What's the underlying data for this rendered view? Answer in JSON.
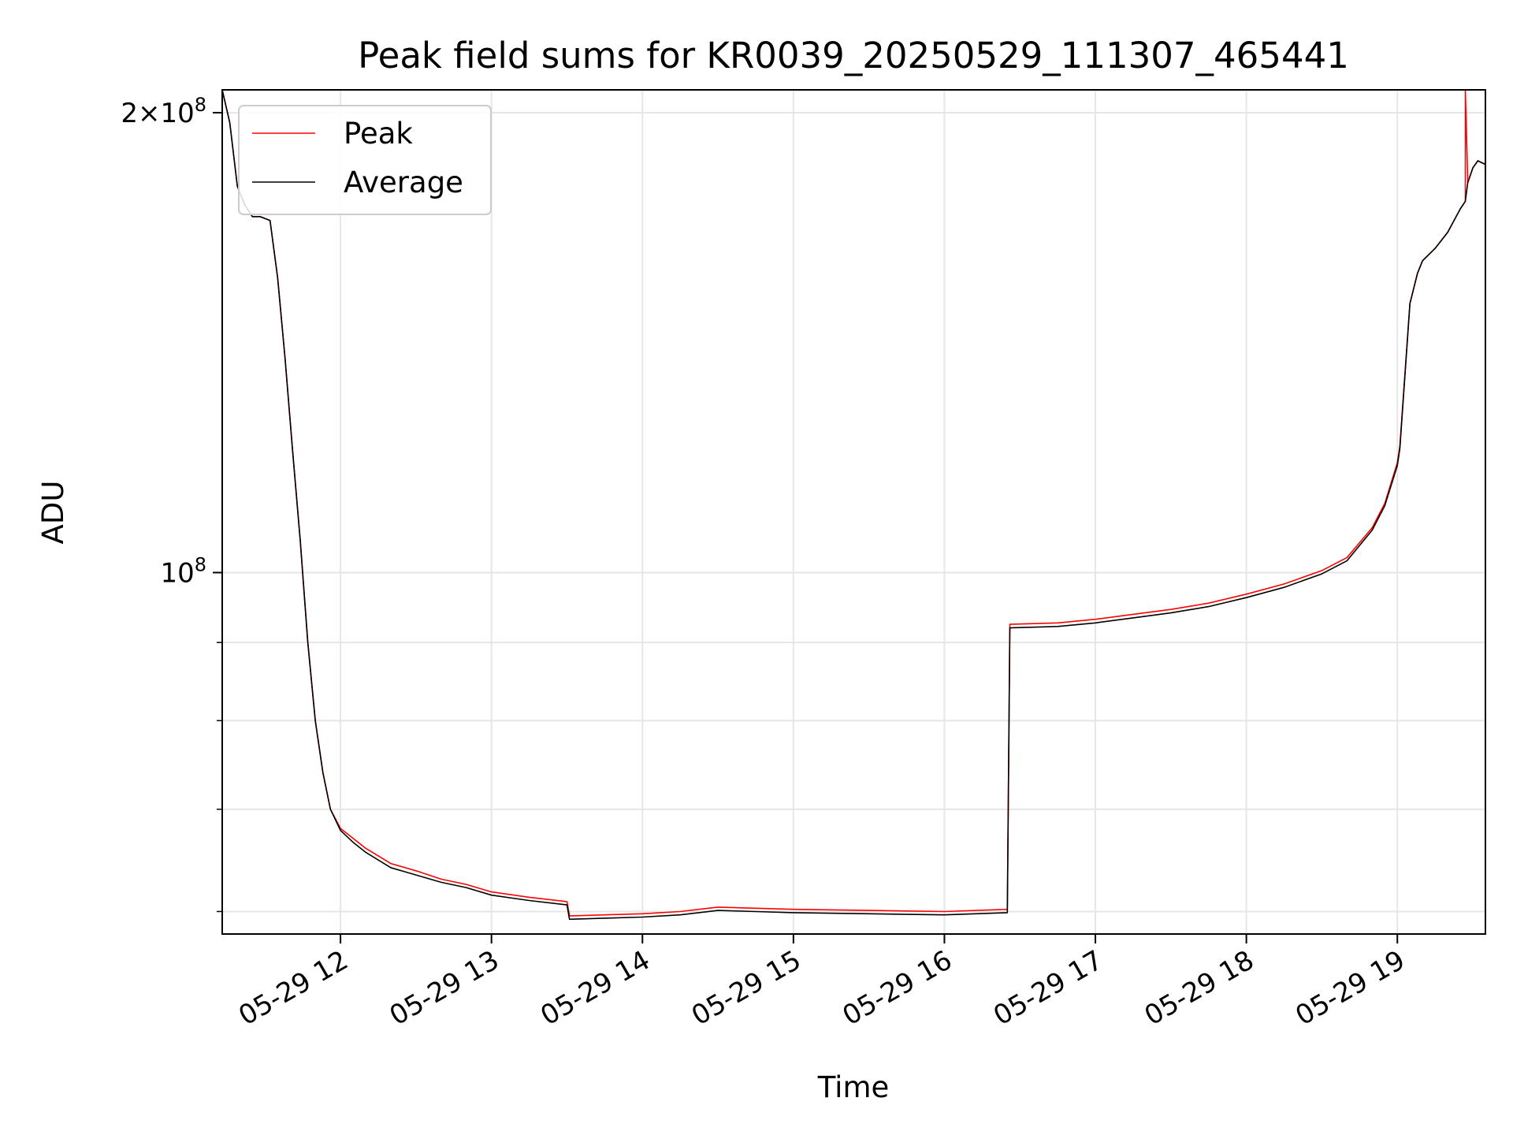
{
  "chart_data": {
    "type": "line",
    "title": "Peak field sums for KR0039_20250529_111307_465441",
    "xlabel": "Time",
    "ylabel": "ADU",
    "xscale": "time",
    "yscale": "log",
    "xlim": [
      "2025-05-29 11:13",
      "2025-05-29 19:35"
    ],
    "ylim": [
      58000000,
      207000000
    ],
    "grid": true,
    "legend": {
      "placement": "upper left",
      "entries": [
        "Peak",
        "Average"
      ]
    },
    "x_ticks": [
      {
        "value": "2025-05-29 12:00",
        "label": "05-29 12"
      },
      {
        "value": "2025-05-29 13:00",
        "label": "05-29 13"
      },
      {
        "value": "2025-05-29 14:00",
        "label": "05-29 14"
      },
      {
        "value": "2025-05-29 15:00",
        "label": "05-29 15"
      },
      {
        "value": "2025-05-29 16:00",
        "label": "05-29 16"
      },
      {
        "value": "2025-05-29 17:00",
        "label": "05-29 17"
      },
      {
        "value": "2025-05-29 18:00",
        "label": "05-29 18"
      },
      {
        "value": "2025-05-29 19:00",
        "label": "05-29 19"
      }
    ],
    "y_major_ticks": [
      {
        "value": 100000000,
        "label_base": "10",
        "label_exp": "8",
        "label_mult": ""
      },
      {
        "value": 200000000,
        "label_base": "10",
        "label_exp": "8",
        "label_mult": "2×"
      }
    ],
    "y_minor_ticks": [
      60000000,
      70000000,
      80000000,
      90000000
    ],
    "series": [
      {
        "name": "Peak",
        "color": "#ff0000",
        "x": [
          "2025-05-29 11:13",
          "2025-05-29 11:16",
          "2025-05-29 11:19",
          "2025-05-29 11:22",
          "2025-05-29 11:25",
          "2025-05-29 11:28",
          "2025-05-29 11:32",
          "2025-05-29 11:35",
          "2025-05-29 11:38",
          "2025-05-29 11:41",
          "2025-05-29 11:44",
          "2025-05-29 11:47",
          "2025-05-29 11:50",
          "2025-05-29 11:53",
          "2025-05-29 11:56",
          "2025-05-29 12:00",
          "2025-05-29 12:05",
          "2025-05-29 12:10",
          "2025-05-29 12:20",
          "2025-05-29 12:30",
          "2025-05-29 12:40",
          "2025-05-29 12:50",
          "2025-05-29 13:00",
          "2025-05-29 13:15",
          "2025-05-29 13:30",
          "2025-05-29 13:31",
          "2025-05-29 13:45",
          "2025-05-29 14:00",
          "2025-05-29 14:15",
          "2025-05-29 14:30",
          "2025-05-29 14:45",
          "2025-05-29 15:00",
          "2025-05-29 15:30",
          "2025-05-29 16:00",
          "2025-05-29 16:25",
          "2025-05-29 16:26",
          "2025-05-29 16:45",
          "2025-05-29 17:00",
          "2025-05-29 17:15",
          "2025-05-29 17:30",
          "2025-05-29 17:45",
          "2025-05-29 18:00",
          "2025-05-29 18:15",
          "2025-05-29 18:30",
          "2025-05-29 18:40",
          "2025-05-29 18:50",
          "2025-05-29 18:55",
          "2025-05-29 19:00",
          "2025-05-29 19:01",
          "2025-05-29 19:05",
          "2025-05-29 19:08",
          "2025-05-29 19:10",
          "2025-05-29 19:15",
          "2025-05-29 19:20",
          "2025-05-29 19:25",
          "2025-05-29 19:27",
          "2025-05-29 19:27",
          "2025-05-29 19:28",
          "2025-05-29 19:30",
          "2025-05-29 19:32",
          "2025-05-29 19:35"
        ],
        "y": [
          207000000,
          197000000,
          179000000,
          174000000,
          171000000,
          171000000,
          170000000,
          156000000,
          138000000,
          120000000,
          105000000,
          90000000,
          80000000,
          74000000,
          70000000,
          68000000,
          67000000,
          66000000,
          64500000,
          63800000,
          63000000,
          62500000,
          61800000,
          61300000,
          60900000,
          59600000,
          59700000,
          59800000,
          60000000,
          60400000,
          60300000,
          60200000,
          60100000,
          60000000,
          60200000,
          92500000,
          92700000,
          93200000,
          93900000,
          94600000,
          95500000,
          96800000,
          98300000,
          100300000,
          102300000,
          107000000,
          111000000,
          118000000,
          121000000,
          150000000,
          157000000,
          160000000,
          163000000,
          167000000,
          173000000,
          175000000,
          207000000,
          180000000,
          184000000,
          186000000,
          185000000
        ]
      },
      {
        "name": "Average",
        "color": "#000000",
        "x": [
          "2025-05-29 11:13",
          "2025-05-29 11:16",
          "2025-05-29 11:19",
          "2025-05-29 11:22",
          "2025-05-29 11:25",
          "2025-05-29 11:28",
          "2025-05-29 11:32",
          "2025-05-29 11:35",
          "2025-05-29 11:38",
          "2025-05-29 11:41",
          "2025-05-29 11:44",
          "2025-05-29 11:47",
          "2025-05-29 11:50",
          "2025-05-29 11:53",
          "2025-05-29 11:56",
          "2025-05-29 12:00",
          "2025-05-29 12:05",
          "2025-05-29 12:10",
          "2025-05-29 12:20",
          "2025-05-29 12:30",
          "2025-05-29 12:40",
          "2025-05-29 12:50",
          "2025-05-29 13:00",
          "2025-05-29 13:15",
          "2025-05-29 13:30",
          "2025-05-29 13:31",
          "2025-05-29 13:45",
          "2025-05-29 14:00",
          "2025-05-29 14:15",
          "2025-05-29 14:30",
          "2025-05-29 14:45",
          "2025-05-29 15:00",
          "2025-05-29 15:30",
          "2025-05-29 16:00",
          "2025-05-29 16:25",
          "2025-05-29 16:26",
          "2025-05-29 16:45",
          "2025-05-29 17:00",
          "2025-05-29 17:15",
          "2025-05-29 17:30",
          "2025-05-29 17:45",
          "2025-05-29 18:00",
          "2025-05-29 18:15",
          "2025-05-29 18:30",
          "2025-05-29 18:40",
          "2025-05-29 18:50",
          "2025-05-29 18:55",
          "2025-05-29 19:00",
          "2025-05-29 19:01",
          "2025-05-29 19:05",
          "2025-05-29 19:08",
          "2025-05-29 19:10",
          "2025-05-29 19:15",
          "2025-05-29 19:20",
          "2025-05-29 19:25",
          "2025-05-29 19:27",
          "2025-05-29 19:28",
          "2025-05-29 19:30",
          "2025-05-29 19:32",
          "2025-05-29 19:35"
        ],
        "y": [
          207000000,
          197000000,
          179000000,
          174000000,
          171000000,
          171000000,
          170000000,
          156000000,
          138000000,
          120000000,
          105000000,
          90000000,
          80000000,
          74000000,
          70000000,
          67800000,
          66600000,
          65600000,
          64100000,
          63400000,
          62700000,
          62200000,
          61500000,
          61000000,
          60600000,
          59300000,
          59400000,
          59500000,
          59700000,
          60100000,
          60000000,
          59900000,
          59800000,
          59700000,
          59900000,
          92000000,
          92200000,
          92700000,
          93400000,
          94100000,
          95000000,
          96300000,
          97800000,
          99800000,
          101800000,
          106600000,
          110600000,
          117500000,
          120500000,
          150000000,
          157000000,
          160000000,
          163000000,
          167000000,
          173000000,
          175000000,
          180000000,
          184000000,
          186000000,
          185000000
        ]
      }
    ]
  }
}
